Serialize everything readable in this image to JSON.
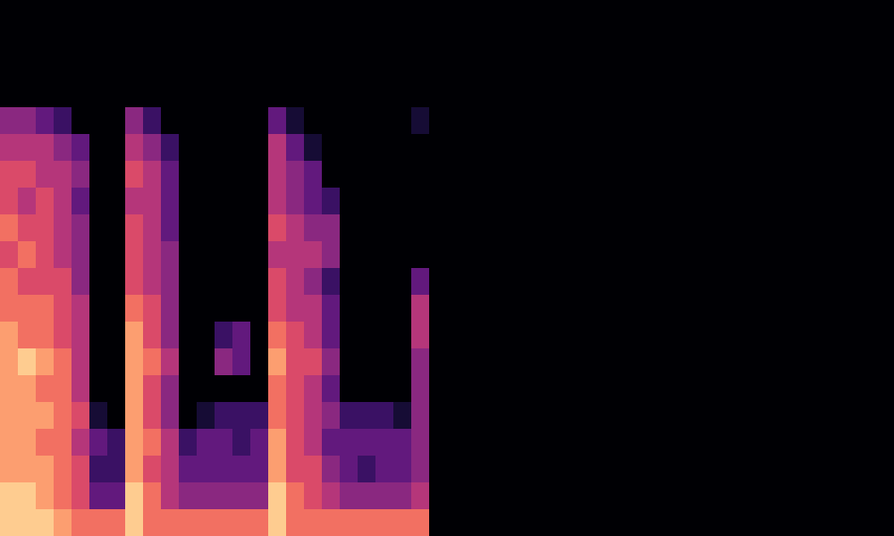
{
  "chart_data": {
    "type": "heatmap",
    "z": [
      [
        9,
        9,
        9,
        8,
        7,
        7,
        7,
        9,
        7,
        7,
        7,
        7,
        7,
        7,
        7,
        9,
        7,
        7,
        7,
        7,
        7,
        7,
        7,
        7
      ],
      [
        9,
        9,
        8,
        7,
        6,
        3,
        3,
        9,
        7,
        5,
        4,
        4,
        4,
        4,
        4,
        9,
        7,
        6,
        5,
        4,
        4,
        4,
        4,
        5
      ],
      [
        8,
        8,
        8,
        7,
        6,
        2,
        2,
        8,
        6,
        5,
        3,
        3,
        3,
        3,
        3,
        8,
        6,
        6,
        4,
        3,
        2,
        3,
        3,
        4
      ],
      [
        8,
        8,
        7,
        7,
        5,
        3,
        2,
        8,
        7,
        5,
        2,
        3,
        3,
        2,
        3,
        8,
        6,
        5,
        3,
        3,
        3,
        3,
        3,
        4
      ],
      [
        8,
        8,
        8,
        7,
        6,
        1,
        0,
        8,
        6,
        4,
        0,
        1,
        2,
        2,
        2,
        7,
        6,
        5,
        4,
        2,
        2,
        2,
        1,
        4
      ],
      [
        8,
        8,
        7,
        7,
        5,
        0,
        0,
        8,
        6,
        4,
        0,
        0,
        0,
        0,
        0,
        7,
        6,
        5,
        3,
        0,
        0,
        0,
        0,
        4
      ],
      [
        8,
        9,
        8,
        7,
        5,
        0,
        0,
        8,
        7,
        5,
        0,
        0,
        4,
        3,
        0,
        8,
        6,
        6,
        4,
        0,
        0,
        0,
        0,
        4
      ],
      [
        8,
        7,
        7,
        6,
        5,
        0,
        0,
        8,
        6,
        4,
        0,
        0,
        2,
        3,
        0,
        7,
        6,
        5,
        3,
        0,
        0,
        0,
        0,
        5
      ],
      [
        7,
        7,
        7,
        6,
        5,
        0,
        0,
        7,
        6,
        4,
        0,
        0,
        0,
        0,
        0,
        6,
        5,
        5,
        3,
        0,
        0,
        0,
        0,
        5
      ],
      [
        7,
        6,
        6,
        6,
        4,
        0,
        0,
        6,
        5,
        4,
        0,
        0,
        0,
        0,
        0,
        6,
        5,
        4,
        2,
        0,
        0,
        0,
        0,
        3
      ],
      [
        6,
        7,
        6,
        5,
        4,
        0,
        0,
        6,
        5,
        4,
        0,
        0,
        0,
        0,
        0,
        5,
        5,
        5,
        4,
        0,
        0,
        0,
        0,
        0
      ],
      [
        7,
        6,
        6,
        5,
        4,
        0,
        0,
        6,
        5,
        3,
        0,
        0,
        0,
        0,
        0,
        6,
        5,
        4,
        4,
        0,
        0,
        0,
        0,
        0
      ],
      [
        6,
        5,
        6,
        5,
        3,
        0,
        0,
        5,
        5,
        3,
        0,
        0,
        0,
        0,
        0,
        5,
        4,
        3,
        2,
        0,
        0,
        0,
        0,
        0
      ],
      [
        6,
        6,
        5,
        5,
        4,
        0,
        0,
        6,
        5,
        3,
        0,
        0,
        0,
        0,
        0,
        5,
        4,
        3,
        0,
        0,
        0,
        0,
        0,
        0
      ],
      [
        5,
        5,
        5,
        4,
        3,
        0,
        0,
        5,
        4,
        2,
        0,
        0,
        0,
        0,
        0,
        5,
        3,
        1,
        0,
        0,
        0,
        0,
        0,
        0
      ],
      [
        4,
        4,
        3,
        2,
        0,
        0,
        0,
        4,
        2,
        0,
        0,
        0,
        0,
        0,
        0,
        3,
        1,
        0,
        0,
        0,
        0,
        0,
        0,
        1
      ],
      [
        0,
        0,
        0,
        0,
        0,
        0,
        0,
        0,
        0,
        0,
        0,
        0,
        0,
        0,
        0,
        0,
        0,
        0,
        0,
        0,
        0,
        0,
        0,
        0
      ],
      [
        0,
        0,
        0,
        0,
        0,
        0,
        0,
        0,
        0,
        0,
        0,
        0,
        0,
        0,
        0,
        0,
        0,
        0,
        0,
        0,
        0,
        0,
        0,
        0
      ],
      [
        0,
        0,
        0,
        0,
        0,
        0,
        0,
        0,
        0,
        0,
        0,
        0,
        0,
        0,
        0,
        0,
        0,
        0,
        0,
        0,
        0,
        0,
        0,
        0
      ],
      [
        0,
        0,
        0,
        0,
        0,
        0,
        0,
        0,
        0,
        0,
        0,
        0,
        0,
        0,
        0,
        0,
        0,
        0,
        0,
        0,
        0,
        0,
        0,
        0
      ]
    ],
    "zlim": [
      0,
      10
    ],
    "xlim": [
      -0.5,
      49.5
    ],
    "ylim": [
      -0.5,
      19.5
    ],
    "tick_labels": false
  }
}
